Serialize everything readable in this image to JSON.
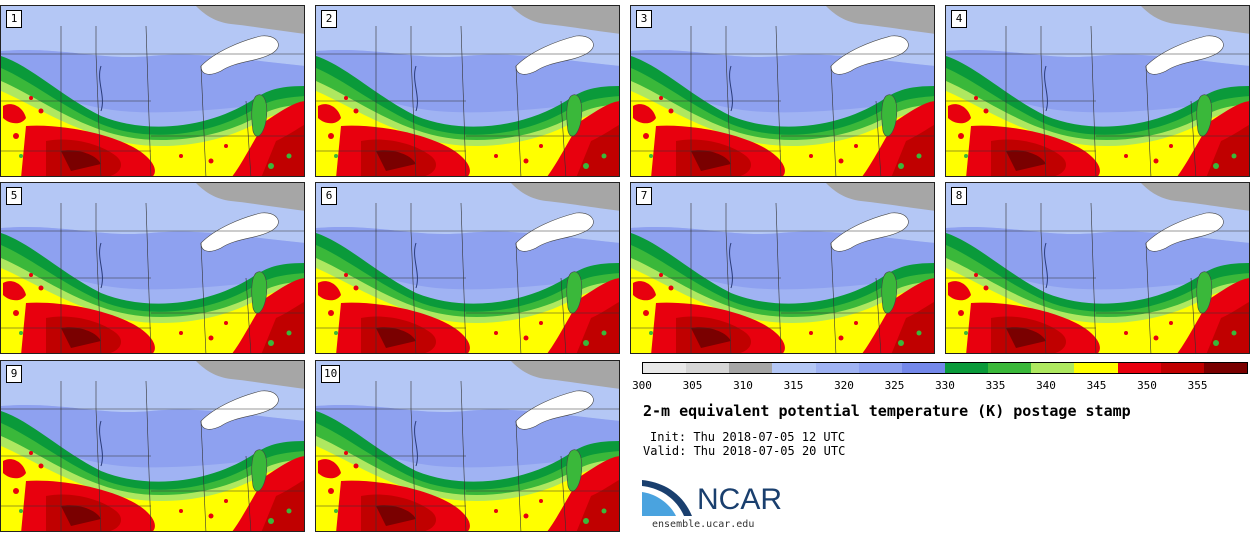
{
  "stamps": [
    "1",
    "2",
    "3",
    "4",
    "5",
    "6",
    "7",
    "8",
    "9",
    "10"
  ],
  "colorbar": {
    "ticks": [
      "300",
      "305",
      "310",
      "315",
      "320",
      "325",
      "330",
      "335",
      "340",
      "345",
      "350",
      "355"
    ],
    "colors": [
      "#e8e8e8",
      "#d6d6d6",
      "#a6a6a6",
      "#b4c7f5",
      "#a0b3f3",
      "#8ea1f0",
      "#7488ea",
      "#0a9a3a",
      "#3ab83a",
      "#aee860",
      "#ffff00",
      "#e8000e",
      "#c00000",
      "#7a0000"
    ]
  },
  "title": "2-m equivalent potential temperature (K) postage stamp",
  "init": "Init: Thu 2018-07-05 12 UTC",
  "valid": "Valid: Thu 2018-07-05 20 UTC",
  "logo": {
    "text": "NCAR",
    "url": "ensemble.ucar.edu"
  }
}
